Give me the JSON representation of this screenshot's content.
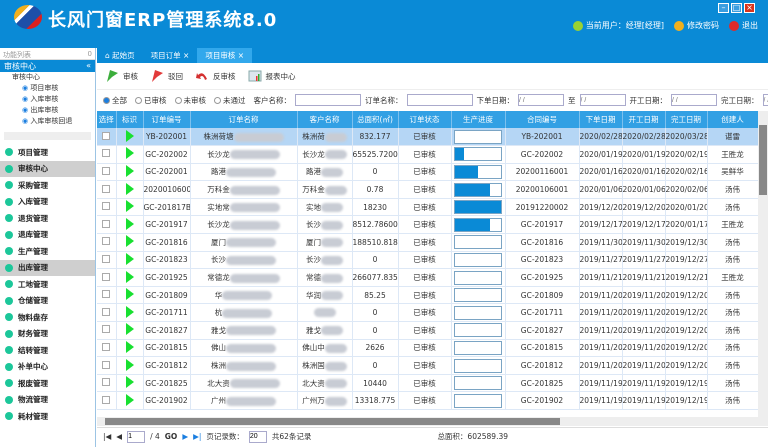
{
  "app": {
    "title": "长风门窗ERP管理系统8.0",
    "user": "当前用户：经理[经理]",
    "change_password": "修改密码",
    "logout": "退出",
    "accent": "#0a8ad6"
  },
  "sidebar": {
    "title": "功能列表",
    "pin": "0",
    "section": "审核中心",
    "tree": {
      "root": "审核中心",
      "leaves": [
        "项目审核",
        "入库审核",
        "出库审核",
        "入库审核回退"
      ]
    },
    "items": [
      {
        "label": "项目管理"
      },
      {
        "label": "审核中心",
        "selected": true
      },
      {
        "label": "采购管理"
      },
      {
        "label": "入库管理"
      },
      {
        "label": "退货管理"
      },
      {
        "label": "退库管理"
      },
      {
        "label": "生产管理"
      },
      {
        "label": "出库管理",
        "selected": true
      },
      {
        "label": "工地管理"
      },
      {
        "label": "仓储管理"
      },
      {
        "label": "物料盘存"
      },
      {
        "label": "财务管理"
      },
      {
        "label": "结转管理"
      },
      {
        "label": "补单中心"
      },
      {
        "label": "报废管理"
      },
      {
        "label": "物流管理"
      },
      {
        "label": "耗材管理"
      }
    ]
  },
  "tabs": [
    {
      "label": "起始页"
    },
    {
      "label": "项目订单"
    },
    {
      "label": "项目审核",
      "active": true
    }
  ],
  "toolbar": {
    "approve": "审核",
    "reject": "驳回",
    "unapprove": "反审核",
    "report": "报表中心"
  },
  "filter": {
    "radios": [
      "全部",
      "已审核",
      "未审核",
      "未通过"
    ],
    "selected": "全部",
    "customer_label": "客户名称：",
    "customer_value": "",
    "order_label": "订单名称：",
    "order_value": "",
    "order_date_label": "下单日期：",
    "to_label": "至",
    "start_label": "开工日期：",
    "finish_label": "完工日期：",
    "date_placeholder": "/ /"
  },
  "table": {
    "columns": [
      "选择",
      "标识",
      "订单编号",
      "订单名称",
      "客户名称",
      "总面积(㎡)",
      "订单状态",
      "生产进度",
      "合同编号",
      "下单日期",
      "开工日期",
      "完工日期",
      "创建人"
    ],
    "rows": [
      {
        "no": "YB-202001",
        "name": "株洲荷塘",
        "cust": "株洲荷",
        "area": "832.177",
        "status": "已审核",
        "progress": 0,
        "contract": "YB-202001",
        "d1": "2020/02/28",
        "d2": "2020/02/28",
        "d3": "2020/03/28",
        "creator": "谌雷",
        "selected": true
      },
      {
        "no": "GC-202002",
        "name": "长沙龙",
        "cust": "长沙龙",
        "area": "65525.7200...",
        "status": "已审核",
        "progress": 20,
        "contract": "GC-202002",
        "d1": "2020/01/19",
        "d2": "2020/01/19",
        "d3": "2020/02/19",
        "creator": "王胜龙"
      },
      {
        "no": "GC-202001",
        "name": "路港",
        "cust": "路港",
        "area": "0",
        "status": "已审核",
        "progress": 50,
        "contract": "20200116001",
        "d1": "2020/01/16",
        "d2": "2020/01/16",
        "d3": "2020/02/16",
        "creator": "吴鲜华"
      },
      {
        "no": "20200106001",
        "name": "万科金",
        "cust": "万科金",
        "area": "0.78",
        "status": "已审核",
        "progress": 75,
        "contract": "20200106001",
        "d1": "2020/01/06",
        "d2": "2020/01/06",
        "d3": "2020/02/06",
        "creator": "汤伟"
      },
      {
        "no": "GC-201817B",
        "name": "实地常",
        "cust": "实地",
        "area": "18230",
        "status": "已审核",
        "progress": 100,
        "contract": "20191220002",
        "d1": "2019/12/20",
        "d2": "2019/12/20",
        "d3": "2020/01/20",
        "creator": "汤伟"
      },
      {
        "no": "GC-201917",
        "name": "长沙龙",
        "cust": "长沙",
        "area": "8512.78600...",
        "status": "已审核",
        "progress": 75,
        "contract": "GC-201917",
        "d1": "2019/12/17",
        "d2": "2019/12/17",
        "d3": "2020/01/17",
        "creator": "王胜龙"
      },
      {
        "no": "GC-201816",
        "name": "厦门",
        "cust": "厦门",
        "area": "188510.818",
        "status": "已审核",
        "progress": 0,
        "contract": "GC-201816",
        "d1": "2019/11/30",
        "d2": "2019/11/30",
        "d3": "2019/12/30",
        "creator": "汤伟"
      },
      {
        "no": "GC-201823",
        "name": "长沙",
        "cust": "长沙",
        "area": "0",
        "status": "已审核",
        "progress": 0,
        "contract": "GC-201823",
        "d1": "2019/11/27",
        "d2": "2019/11/27",
        "d3": "2019/12/27",
        "creator": "汤伟"
      },
      {
        "no": "GC-201925",
        "name": "常德龙",
        "cust": "常德",
        "area": "266077.835...",
        "status": "已审核",
        "progress": 0,
        "contract": "GC-201925",
        "d1": "2019/11/21",
        "d2": "2019/11/21",
        "d3": "2019/12/21",
        "creator": "王胜龙"
      },
      {
        "no": "GC-201809",
        "name": "华",
        "cust": "华润",
        "area": "85.25",
        "status": "已审核",
        "progress": 0,
        "contract": "GC-201809",
        "d1": "2019/11/20",
        "d2": "2019/11/20",
        "d3": "2019/12/20",
        "creator": "汤伟"
      },
      {
        "no": "GC-201711",
        "name": "杭",
        "cust": "",
        "area": "0",
        "status": "已审核",
        "progress": 0,
        "contract": "GC-201711",
        "d1": "2019/11/20",
        "d2": "2019/11/20",
        "d3": "2019/12/20",
        "creator": "汤伟"
      },
      {
        "no": "GC-201827",
        "name": "雅戈",
        "cust": "雅戈",
        "area": "0",
        "status": "已审核",
        "progress": 0,
        "contract": "GC-201827",
        "d1": "2019/11/20",
        "d2": "2019/11/20",
        "d3": "2019/12/20",
        "creator": "汤伟"
      },
      {
        "no": "GC-201815",
        "name": "佛山",
        "cust": "佛山中",
        "area": "2626",
        "status": "已审核",
        "progress": 0,
        "contract": "GC-201815",
        "d1": "2019/11/20",
        "d2": "2019/11/20",
        "d3": "2019/12/20",
        "creator": "汤伟"
      },
      {
        "no": "GC-201812",
        "name": "株洲",
        "cust": "株洲国",
        "area": "0",
        "status": "已审核",
        "progress": 0,
        "contract": "GC-201812",
        "d1": "2019/11/20",
        "d2": "2019/11/20",
        "d3": "2019/12/20",
        "creator": "汤伟"
      },
      {
        "no": "GC-201825",
        "name": "北大资",
        "cust": "北大资",
        "area": "10440",
        "status": "已审核",
        "progress": 0,
        "contract": "GC-201825",
        "d1": "2019/11/19",
        "d2": "2019/11/19",
        "d3": "2019/12/19",
        "creator": "汤伟"
      },
      {
        "no": "GC-201902",
        "name": "广州",
        "cust": "广州万",
        "area": "13318.775",
        "status": "已审核",
        "progress": 0,
        "contract": "GC-201902",
        "d1": "2019/11/19",
        "d2": "2019/11/19",
        "d3": "2019/12/19",
        "creator": "汤伟"
      }
    ]
  },
  "pager": {
    "page": "1",
    "total_pages": "/ 4",
    "go": "GO",
    "page_size_label": "页记录数：",
    "page_size": "20",
    "total": "共62条记录",
    "area_total": "总面积：602589.39"
  }
}
